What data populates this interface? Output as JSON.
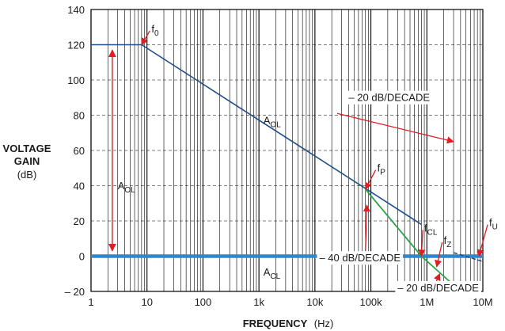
{
  "chart_data": {
    "type": "line",
    "title": "",
    "xlabel": "FREQUENCY",
    "xlabel_unit": "(Hz)",
    "ylabel": [
      "VOLTAGE",
      "GAIN"
    ],
    "ylabel_unit": "(dB)",
    "xscale": "log",
    "xlim": [
      1,
      10000000
    ],
    "ylim": [
      -20,
      140
    ],
    "grid": true,
    "x_ticks": [
      1,
      10,
      100,
      1000,
      10000,
      100000,
      1000000,
      10000000
    ],
    "x_tick_labels": [
      "1",
      "10",
      "100",
      "1k",
      "10k",
      "100k",
      "1M",
      "10M"
    ],
    "y_ticks": [
      -20,
      0,
      20,
      40,
      60,
      80,
      100,
      120,
      140
    ],
    "y_tick_labels": [
      "– 20",
      "0",
      "20",
      "40",
      "60",
      "80",
      "100",
      "120",
      "140"
    ],
    "colors": {
      "open_loop": "#1f4e8c",
      "closed_loop": "#2aa345",
      "zero_db_line": "#2f86c8",
      "arrows": "#e31b23",
      "grid": "#000000"
    },
    "series": [
      {
        "key": "aol",
        "points": [
          [
            1,
            120
          ],
          [
            8,
            120
          ],
          [
            800000,
            18
          ]
        ]
      },
      {
        "key": "acl",
        "points": [
          [
            80000,
            38
          ],
          [
            800000,
            0
          ],
          [
            4000000,
            -20
          ]
        ]
      },
      {
        "key": "aol_tail",
        "points": [
          [
            3000000,
            2
          ],
          [
            10000000,
            -3
          ]
        ]
      },
      {
        "key": "zero_db",
        "points": [
          [
            1,
            0
          ],
          [
            10000000,
            0
          ]
        ]
      }
    ],
    "annotations": [
      {
        "key": "f0",
        "main": "f",
        "sub": "0",
        "label_at": [
          12,
          127
        ],
        "arrow_to": [
          8,
          120
        ]
      },
      {
        "key": "fP",
        "main": "f",
        "sub": "P",
        "label_at": [
          130000,
          48
        ],
        "arrow_to": [
          80000,
          38
        ]
      },
      {
        "key": "fCL",
        "main": "f",
        "sub": "CL",
        "label_at": [
          900000,
          14
        ],
        "arrow_to": [
          800000,
          0
        ]
      },
      {
        "key": "fZ",
        "main": "f",
        "sub": "Z",
        "label_at": [
          2000000,
          7
        ],
        "arrow_to": [
          1500000,
          -6
        ]
      },
      {
        "key": "fU",
        "main": "f",
        "sub": "U",
        "label_at": [
          13000000,
          17
        ],
        "arrow_to": [
          8500000,
          0
        ]
      },
      {
        "key": "slope1",
        "text": "– 20 dB/DECADE",
        "label_at": [
          40000,
          88
        ],
        "arrow_to": [
          3000000,
          65
        ],
        "arrow_from": [
          25000,
          81
        ]
      },
      {
        "key": "slope2",
        "text": "– 40 dB/DECADE",
        "label_at": [
          12000,
          -3
        ],
        "arrow_to": [
          85000,
          29
        ],
        "arrow_from": [
          80000,
          3
        ]
      },
      {
        "key": "slope3",
        "text": "– 20 dB/DECADE",
        "label_at": [
          300000,
          -20
        ],
        "arrow_to": [
          1700000,
          -10
        ],
        "arrow_from": [
          1400000,
          -16
        ]
      }
    ],
    "series_labels": [
      {
        "key": "aol_label",
        "main": "A",
        "sub": "OL",
        "label_at": [
          1200,
          75
        ]
      },
      {
        "key": "aol_dim_label",
        "main": "A",
        "sub": "OL",
        "label_at": [
          3,
          38
        ]
      },
      {
        "key": "acl_label",
        "main": "A",
        "sub": "CL",
        "label_at": [
          1200,
          -11
        ]
      }
    ]
  }
}
